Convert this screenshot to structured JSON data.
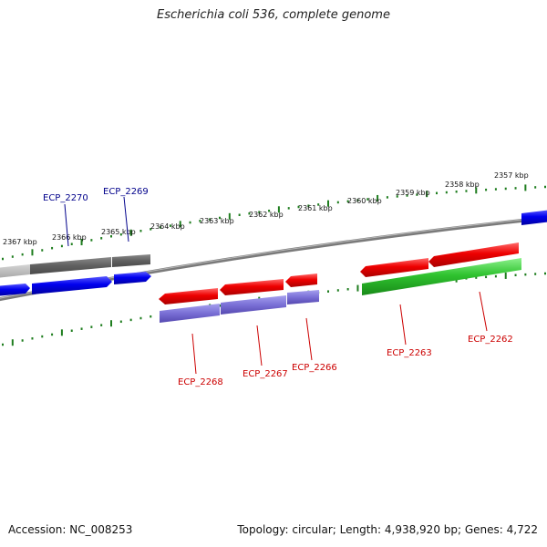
{
  "title": "Escherichia coli 536, complete genome",
  "footer": {
    "accession": "Accession: NC_008253",
    "summary": "Topology: circular; Length: 4,938,920 bp; Genes: 4,722"
  },
  "colors": {
    "tick": "#1e7d1e",
    "backbone": "#888888",
    "forward_label": "#00008b",
    "reverse_label": "#cc0000"
  },
  "kbp_labels": [
    "2357 kbp",
    "2358 kbp",
    "2359 kbp",
    "2360 kbp",
    "2361 kbp",
    "2362 kbp",
    "2363 kbp",
    "2364 kbp",
    "2365 kbp",
    "2366 kbp",
    "2367 kbp"
  ],
  "gene_labels": [
    "ECP_2270",
    "ECP_2269",
    "ECP_2268",
    "ECP_2267",
    "ECP_2266",
    "ECP_2263",
    "ECP_2262"
  ]
}
